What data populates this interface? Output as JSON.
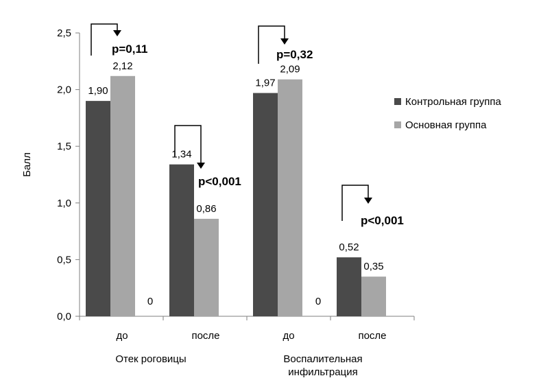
{
  "chart_data": {
    "type": "bar",
    "ylabel": "Балл",
    "ylim": [
      0,
      2.5
    ],
    "yticks": [
      "0,0",
      "0,5",
      "1,0",
      "1,5",
      "2,0",
      "2,5"
    ],
    "categories": [
      "до",
      "после",
      "до",
      "после"
    ],
    "groups": [
      "Отек роговицы",
      "Воспалительная инфильтрация"
    ],
    "series": [
      {
        "name": "Контрольная группа",
        "color": "#4a4a4a",
        "values": [
          1.9,
          1.34,
          1.97,
          0.52
        ],
        "labels": [
          "1,90",
          "1,34",
          "1,97",
          "0,52"
        ]
      },
      {
        "name": "Основная группа",
        "color": "#a6a6a6",
        "values": [
          2.12,
          0.86,
          2.09,
          0.35
        ],
        "labels": [
          "2,12",
          "0,86",
          "2,09",
          "0,35"
        ]
      }
    ],
    "zero_labels": [
      "0",
      "0"
    ],
    "p_values": [
      "p=0,11",
      "p<0,001",
      "p=0,32",
      "p<0,001"
    ],
    "legend_position": "right",
    "grid": false
  }
}
